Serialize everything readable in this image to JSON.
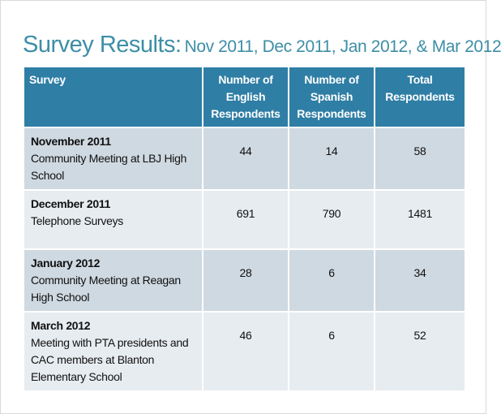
{
  "header": {
    "title": "Survey Results:",
    "subtitle": "Nov 2011, Dec 2011, Jan 2012, & Mar 2012"
  },
  "table": {
    "columns": [
      "Survey",
      "Number of English Respondents",
      "Number of Spanish Respondents",
      "Total Respondents"
    ],
    "rows": [
      {
        "period": "November 2011",
        "description": "Community Meeting at LBJ High School",
        "english": 44,
        "spanish": 14,
        "total": 58
      },
      {
        "period": "December 2011",
        "description": "Telephone Surveys",
        "english": 691,
        "spanish": 790,
        "total": 1481
      },
      {
        "period": "January 2012",
        "description": "Community Meeting at Reagan High School",
        "english": 28,
        "spanish": 6,
        "total": 34
      },
      {
        "period": "March 2012",
        "description": "Meeting with PTA presidents and CAC members at Blanton Elementary School",
        "english": 46,
        "spanish": 6,
        "total": 52
      }
    ]
  }
}
